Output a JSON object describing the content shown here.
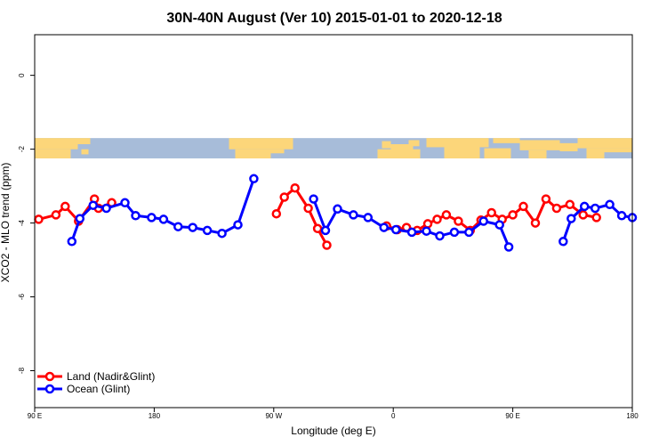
{
  "chart_data": {
    "type": "line",
    "title": "30N-40N August (Ver 10)   2015-01-01 to 2020-12-18",
    "xlabel": "Longitude (deg E)",
    "ylabel": "XCO2 - MLO trend (ppm)",
    "xlim": [
      90,
      540
    ],
    "ylim": [
      -9,
      1.1
    ],
    "x_ticks": [
      {
        "value": 90,
        "label": "90 E"
      },
      {
        "value": 180,
        "label": "180"
      },
      {
        "value": 270,
        "label": "90 W"
      },
      {
        "value": 360,
        "label": "0"
      },
      {
        "value": 450,
        "label": "90 E"
      },
      {
        "value": 540,
        "label": "180"
      }
    ],
    "y_ticks": [
      {
        "value": 0,
        "label": "0"
      },
      {
        "value": -2,
        "label": "-2"
      },
      {
        "value": -4,
        "label": "-4"
      },
      {
        "value": -6,
        "label": "-6"
      },
      {
        "value": -8,
        "label": "-8"
      }
    ],
    "map_band": {
      "y_top": -1.7,
      "y_bottom": -2.25,
      "ocean_color": "#a7bcd9",
      "land_color": "#fcd67a"
    },
    "legend": {
      "position": "bottom-left"
    },
    "series": [
      {
        "name": "Land (Nadir&Glint)",
        "color": "#ff0000",
        "segments": [
          [
            [
              93,
              -3.9
            ],
            [
              106,
              -3.78
            ],
            [
              113,
              -3.55
            ],
            [
              123,
              -3.95
            ],
            [
              135,
              -3.35
            ],
            [
              138,
              -3.6
            ],
            [
              148,
              -3.45
            ]
          ],
          [
            [
              272,
              -3.75
            ],
            [
              278,
              -3.3
            ],
            [
              286,
              -3.05
            ],
            [
              296,
              -3.6
            ],
            [
              303,
              -4.15
            ],
            [
              310,
              -4.6
            ]
          ],
          [
            [
              355,
              -4.08
            ],
            [
              363,
              -4.18
            ],
            [
              370,
              -4.12
            ],
            [
              378,
              -4.2
            ],
            [
              386,
              -4.02
            ],
            [
              393,
              -3.9
            ],
            [
              400,
              -3.78
            ],
            [
              409,
              -3.95
            ],
            [
              418,
              -4.2
            ],
            [
              426,
              -3.92
            ],
            [
              434,
              -3.72
            ],
            [
              442,
              -3.9
            ],
            [
              450,
              -3.78
            ],
            [
              458,
              -3.55
            ],
            [
              467,
              -4.0
            ],
            [
              475,
              -3.35
            ],
            [
              483,
              -3.6
            ],
            [
              493,
              -3.5
            ],
            [
              503,
              -3.78
            ],
            [
              513,
              -3.85
            ]
          ]
        ]
      },
      {
        "name": "Ocean (Glint)",
        "color": "#0000ff",
        "segments": [
          [
            [
              118,
              -4.5
            ],
            [
              124,
              -3.88
            ],
            [
              134,
              -3.52
            ],
            [
              144,
              -3.6
            ],
            [
              158,
              -3.45
            ],
            [
              166,
              -3.8
            ],
            [
              178,
              -3.85
            ],
            [
              187,
              -3.9
            ],
            [
              198,
              -4.1
            ],
            [
              209,
              -4.12
            ],
            [
              220,
              -4.2
            ],
            [
              231,
              -4.28
            ],
            [
              243,
              -4.05
            ],
            [
              255,
              -2.8
            ]
          ],
          [
            [
              300,
              -3.35
            ],
            [
              309,
              -4.2
            ],
            [
              318,
              -3.62
            ],
            [
              330,
              -3.78
            ],
            [
              341,
              -3.85
            ],
            [
              353,
              -4.12
            ],
            [
              362,
              -4.18
            ],
            [
              374,
              -4.25
            ],
            [
              385,
              -4.22
            ],
            [
              395,
              -4.35
            ],
            [
              406,
              -4.25
            ],
            [
              417,
              -4.25
            ],
            [
              428,
              -3.95
            ],
            [
              440,
              -4.05
            ],
            [
              447,
              -4.65
            ]
          ],
          [
            [
              488,
              -4.5
            ],
            [
              494,
              -3.88
            ],
            [
              504,
              -3.55
            ],
            [
              512,
              -3.6
            ],
            [
              523,
              -3.5
            ],
            [
              532,
              -3.8
            ],
            [
              540,
              -3.85
            ]
          ]
        ]
      }
    ]
  }
}
